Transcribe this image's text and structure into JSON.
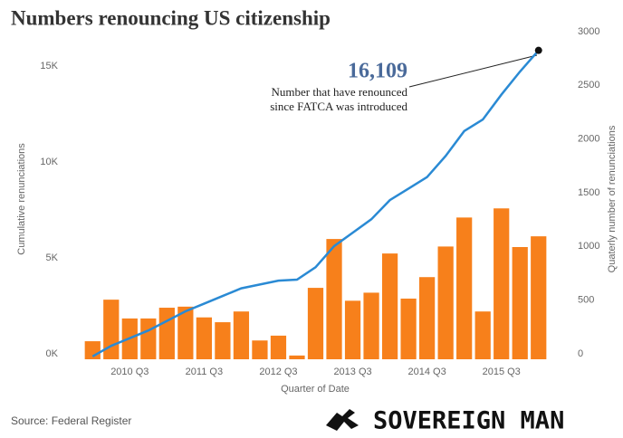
{
  "chart_data": {
    "type": "bar_line",
    "title": "Numbers renouncing US citizenship",
    "categories": [
      null,
      null,
      "2010 Q3",
      null,
      null,
      null,
      "2011 Q3",
      null,
      null,
      null,
      "2012 Q3",
      null,
      null,
      null,
      "2013 Q3",
      null,
      null,
      null,
      "2014 Q3",
      null,
      null,
      null,
      "2015 Q3",
      null,
      null
    ],
    "series": [
      {
        "name": "Quarterly number of renunciations",
        "type": "bar",
        "axis": "y2",
        "color": "#f7801b",
        "values": [
          168,
          555,
          380,
          380,
          480,
          490,
          390,
          345,
          445,
          175,
          220,
          35,
          665,
          1120,
          545,
          620,
          985,
          565,
          765,
          1050,
          1320,
          445,
          1405,
          1045,
          1145
        ]
      },
      {
        "name": "Cumulative renunciations",
        "type": "line",
        "axis": "y",
        "color": "#2a8ad4",
        "values": [
          150,
          700,
          1100,
          1500,
          2000,
          2500,
          2900,
          3300,
          3700,
          3900,
          4100,
          4150,
          4800,
          5900,
          6600,
          7300,
          8300,
          8900,
          9500,
          10600,
          11900,
          12500,
          13800,
          15000,
          16109
        ]
      }
    ],
    "ylabel": "Cumulative renunciations",
    "y2label": "Quaterly number of renunciations",
    "xlabel": "Quarter of Date",
    "ylim": [
      0,
      16800
    ],
    "yticks": [
      {
        "value": 0,
        "label": "0K"
      },
      {
        "value": 5000,
        "label": "5K"
      },
      {
        "value": 10000,
        "label": "10K"
      },
      {
        "value": 15000,
        "label": "15K"
      }
    ],
    "y2lim": [
      0,
      3000
    ],
    "y2ticks": [
      0,
      500,
      1000,
      1500,
      2000,
      2500,
      3000
    ],
    "grid": false,
    "annotation": {
      "label": "16,109",
      "lines": [
        "Number that have renounced",
        "since FATCA was introduced"
      ]
    },
    "source": "Source: Federal Register",
    "logo": "SOVEREIGN MAN"
  }
}
